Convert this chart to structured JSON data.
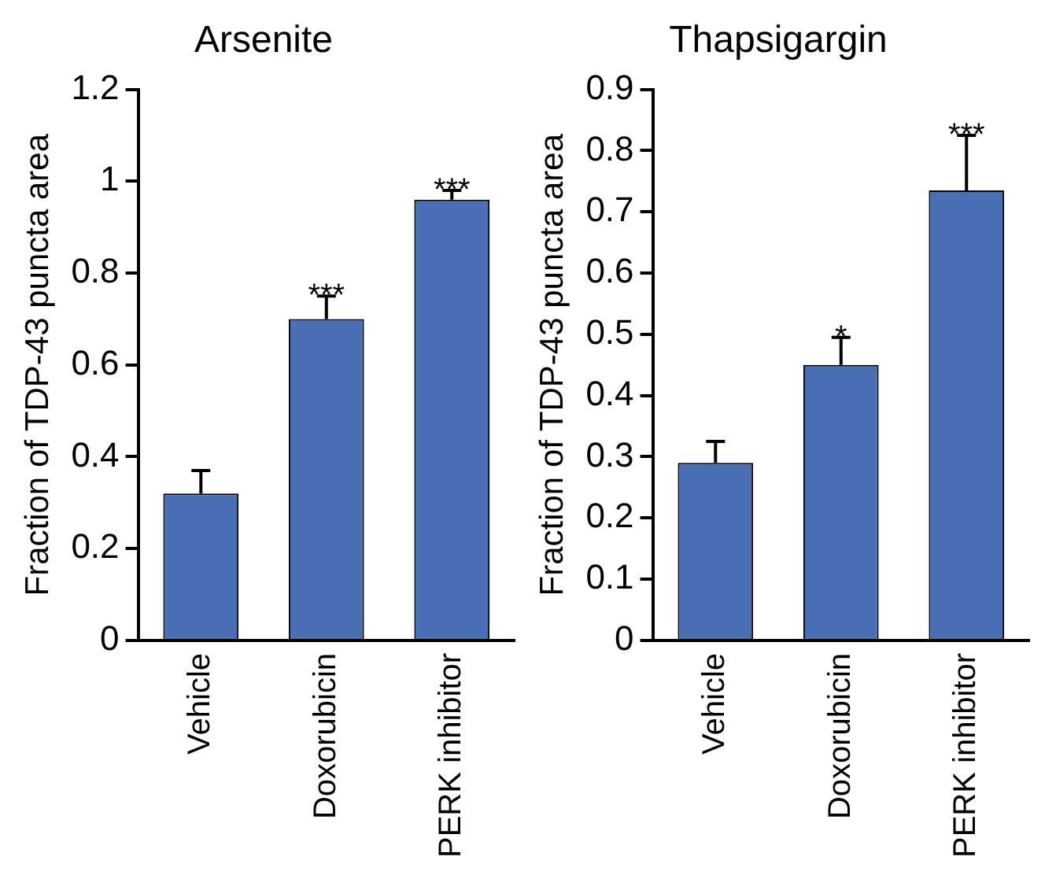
{
  "chart_data": [
    {
      "type": "bar",
      "title": "Arsenite",
      "ylabel": "Fraction of TDP-43 puncta area",
      "categories": [
        "Vehicle",
        "Doxorubicin",
        "PERK inhibitor"
      ],
      "values": [
        0.32,
        0.7,
        0.96
      ],
      "color": "#4a6fb5",
      "errors": [
        [
          0.32,
          0.37
        ],
        [
          0.7,
          0.75
        ],
        [
          0.96,
          0.98
        ]
      ],
      "ylim": [
        0,
        1.2
      ],
      "yticks": [
        0,
        0.2,
        0.4,
        0.6,
        0.8,
        1,
        1.2
      ],
      "grid": false,
      "legend": false,
      "annotations": [
        {
          "text": "***",
          "x": "Doxorubicin",
          "y": 0.75
        },
        {
          "text": "***",
          "x": "PERK inhibitor",
          "y": 0.98
        }
      ]
    },
    {
      "type": "bar",
      "title": "Thapsigargin",
      "ylabel": "Fraction of TDP-43 puncta area",
      "categories": [
        "Vehicle",
        "Doxorubicin",
        "PERK inhibitor"
      ],
      "values": [
        0.29,
        0.45,
        0.735
      ],
      "color": "#4a6fb5",
      "errors": [
        [
          0.29,
          0.325
        ],
        [
          0.45,
          0.495
        ],
        [
          0.735,
          0.825
        ]
      ],
      "ylim": [
        0,
        0.9
      ],
      "yticks": [
        0,
        0.1,
        0.2,
        0.3,
        0.4,
        0.5,
        0.6,
        0.7,
        0.8,
        0.9
      ],
      "grid": false,
      "legend": false,
      "annotations": [
        {
          "text": "*",
          "x": "Doxorubicin",
          "y": 0.495
        },
        {
          "text": "***",
          "x": "PERK inhibitor",
          "y": 0.825
        }
      ]
    }
  ]
}
